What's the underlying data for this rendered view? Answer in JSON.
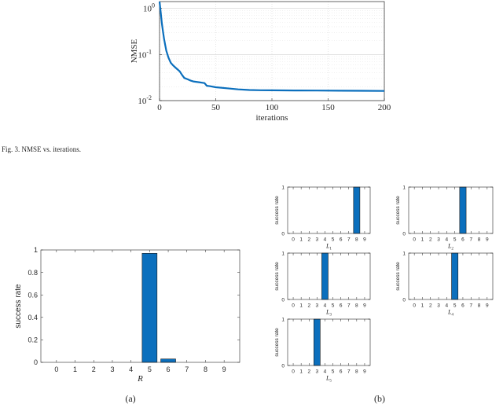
{
  "fig3_caption": "Fig. 3.  NMSE vs. iterations.",
  "label_a": "(a)",
  "label_b": "(b)",
  "chart_data": [
    {
      "id": "nmse",
      "type": "line",
      "xlabel": "iterations",
      "ylabel": "NMSE",
      "yscale": "log",
      "xlim": [
        0,
        200
      ],
      "ylim": [
        0.01,
        1.4
      ],
      "xticks": [
        "0",
        "50",
        "100",
        "150",
        "200"
      ],
      "yticks": [
        {
          "base": "10",
          "exp": "0"
        },
        {
          "base": "10",
          "exp": "-1"
        },
        {
          "base": "10",
          "exp": "-2"
        }
      ],
      "grid": true,
      "color": "#0b6fbd",
      "x": [
        0,
        1,
        2,
        3,
        4,
        5,
        6,
        8,
        10,
        12,
        15,
        18,
        20,
        22,
        25,
        28,
        30,
        35,
        40,
        42,
        45,
        50,
        60,
        70,
        80,
        90,
        100,
        120,
        140,
        160,
        180,
        200
      ],
      "y": [
        1.4,
        0.85,
        0.48,
        0.32,
        0.22,
        0.16,
        0.12,
        0.085,
        0.066,
        0.058,
        0.05,
        0.043,
        0.036,
        0.031,
        0.029,
        0.027,
        0.026,
        0.025,
        0.024,
        0.021,
        0.0205,
        0.0195,
        0.0185,
        0.0175,
        0.017,
        0.0168,
        0.0167,
        0.0166,
        0.0165,
        0.0164,
        0.0163,
        0.0162
      ]
    },
    {
      "id": "a",
      "type": "bar",
      "xlabel": "R",
      "ylabel": "success rate",
      "ylim": [
        0,
        1
      ],
      "categories": [
        "0",
        "1",
        "2",
        "3",
        "4",
        "5",
        "6",
        "7",
        "8",
        "9"
      ],
      "values": [
        0,
        0,
        0,
        0,
        0,
        0.97,
        0.03,
        0,
        0,
        0
      ],
      "yticks": [
        "0",
        "0.2",
        "0.4",
        "0.6",
        "0.8",
        "1"
      ],
      "color": "#0b6fbd"
    },
    {
      "id": "L1",
      "type": "bar",
      "xlabel": {
        "base": "L",
        "sub": "1"
      },
      "ylabel": "success rate",
      "ylim": [
        0,
        1
      ],
      "categories": [
        "0",
        "1",
        "2",
        "3",
        "4",
        "5",
        "6",
        "7",
        "8",
        "9"
      ],
      "values": [
        0,
        0,
        0,
        0,
        0,
        0,
        0,
        0,
        1,
        0
      ],
      "yticks": [
        "0",
        "1"
      ],
      "color": "#0b6fbd"
    },
    {
      "id": "L2",
      "type": "bar",
      "xlabel": {
        "base": "L",
        "sub": "2"
      },
      "ylabel": "success rate",
      "ylim": [
        0,
        1
      ],
      "categories": [
        "0",
        "1",
        "2",
        "3",
        "4",
        "5",
        "6",
        "7",
        "8",
        "9"
      ],
      "values": [
        0,
        0,
        0,
        0,
        0,
        0,
        1,
        0,
        0,
        0
      ],
      "yticks": [
        "0",
        "1"
      ],
      "color": "#0b6fbd"
    },
    {
      "id": "L3",
      "type": "bar",
      "xlabel": {
        "base": "L",
        "sub": "3"
      },
      "ylabel": "success rate",
      "ylim": [
        0,
        1
      ],
      "categories": [
        "0",
        "1",
        "2",
        "3",
        "4",
        "5",
        "6",
        "7",
        "8",
        "9"
      ],
      "values": [
        0,
        0,
        0,
        0,
        1,
        0,
        0,
        0,
        0,
        0
      ],
      "yticks": [
        "0",
        "1"
      ],
      "color": "#0b6fbd"
    },
    {
      "id": "L4",
      "type": "bar",
      "xlabel": {
        "base": "L",
        "sub": "4"
      },
      "ylabel": "success rate",
      "ylim": [
        0,
        1
      ],
      "categories": [
        "0",
        "1",
        "2",
        "3",
        "4",
        "5",
        "6",
        "7",
        "8",
        "9"
      ],
      "values": [
        0,
        0,
        0,
        0,
        0,
        1,
        0,
        0,
        0,
        0
      ],
      "yticks": [
        "0",
        "1"
      ],
      "color": "#0b6fbd"
    },
    {
      "id": "L5",
      "type": "bar",
      "xlabel": {
        "base": "L",
        "sub": "5"
      },
      "ylabel": "success rate",
      "ylim": [
        0,
        1
      ],
      "categories": [
        "0",
        "1",
        "2",
        "3",
        "4",
        "5",
        "6",
        "7",
        "8",
        "9"
      ],
      "values": [
        0,
        0,
        0,
        1,
        0,
        0,
        0,
        0,
        0,
        0
      ],
      "yticks": [
        "0",
        "1"
      ],
      "color": "#0b6fbd"
    }
  ]
}
